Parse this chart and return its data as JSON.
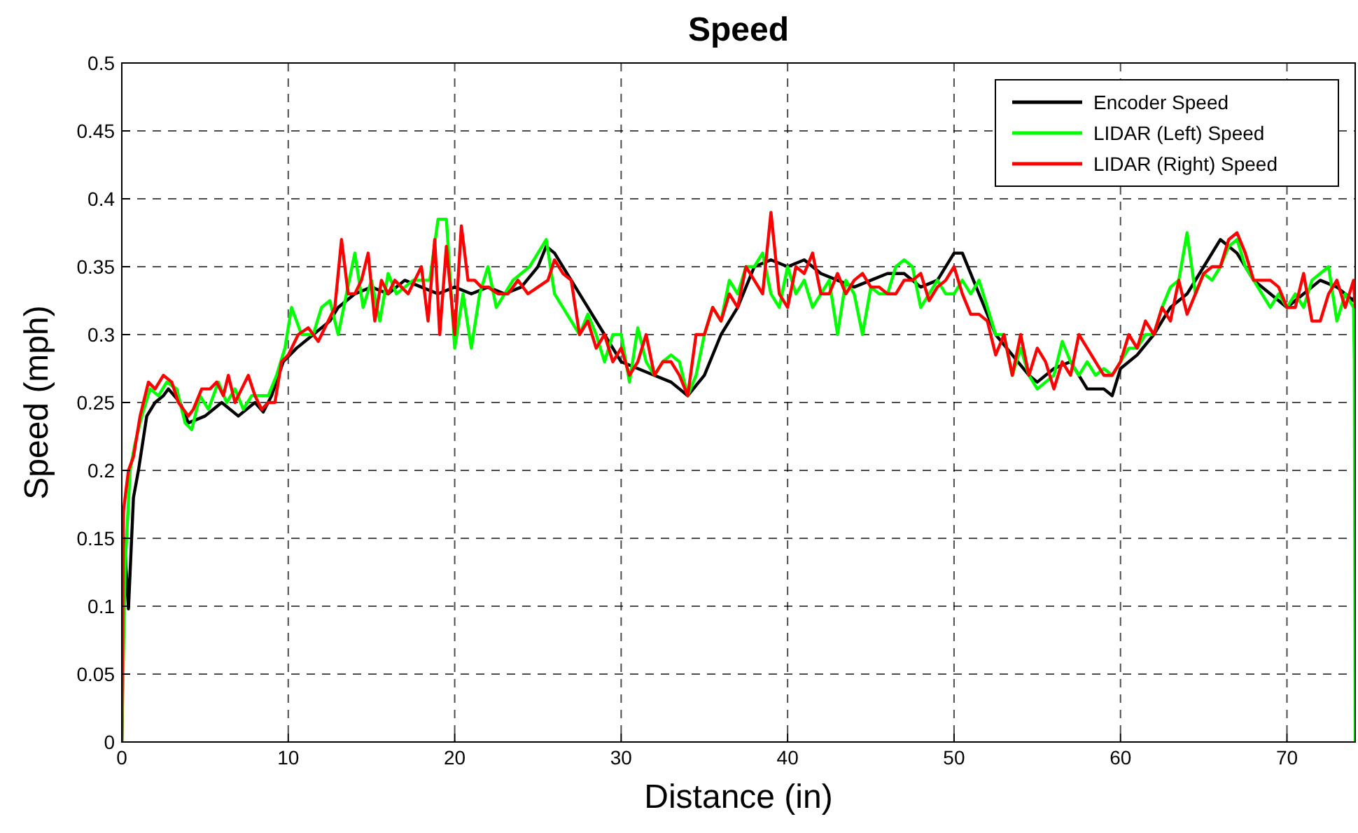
{
  "chart_data": {
    "type": "line",
    "title": "Speed",
    "xlabel": "Distance (in)",
    "ylabel": "Speed (mph)",
    "xlim": [
      0,
      74.1
    ],
    "ylim": [
      0,
      0.5
    ],
    "xticks": [
      0,
      10,
      20,
      30,
      40,
      50,
      60,
      70
    ],
    "yticks": [
      0,
      0.05,
      0.1,
      0.15,
      0.2,
      0.25,
      0.3,
      0.35,
      0.4,
      0.45,
      0.5
    ],
    "grid": true,
    "legend": "top right",
    "line_style": "solid",
    "series": [
      {
        "name": "Encoder Speed",
        "color": "#000000",
        "x": [
          0,
          0.15,
          0.4,
          0.7,
          1,
          1.5,
          2,
          2.5,
          2.8,
          3.5,
          4,
          5,
          5.5,
          6,
          7,
          8,
          8.5,
          9,
          9.7,
          10.5,
          11.5,
          12.5,
          13,
          14,
          15,
          16,
          17,
          18,
          19,
          20,
          21,
          22,
          23,
          24,
          25,
          25.5,
          26,
          27,
          28,
          29,
          30,
          31,
          32,
          33,
          34,
          35,
          36,
          37,
          38,
          39,
          40,
          41,
          42,
          43,
          44,
          45,
          46,
          47,
          48,
          49,
          50,
          50.5,
          51.5,
          52.5,
          53.5,
          54.5,
          55,
          56,
          57,
          58,
          59,
          59.5,
          60,
          61,
          62,
          63,
          64,
          65,
          66,
          67,
          68,
          69,
          70,
          71,
          72,
          73,
          74,
          74.1
        ],
        "values": [
          0,
          0.15,
          0.098,
          0.18,
          0.2,
          0.24,
          0.25,
          0.255,
          0.26,
          0.25,
          0.235,
          0.24,
          0.245,
          0.25,
          0.24,
          0.25,
          0.243,
          0.255,
          0.28,
          0.29,
          0.3,
          0.31,
          0.32,
          0.33,
          0.335,
          0.33,
          0.34,
          0.335,
          0.33,
          0.335,
          0.33,
          0.335,
          0.33,
          0.335,
          0.35,
          0.365,
          0.36,
          0.34,
          0.32,
          0.3,
          0.28,
          0.275,
          0.27,
          0.265,
          0.255,
          0.27,
          0.3,
          0.32,
          0.35,
          0.355,
          0.35,
          0.355,
          0.345,
          0.34,
          0.335,
          0.34,
          0.345,
          0.345,
          0.335,
          0.34,
          0.36,
          0.36,
          0.33,
          0.3,
          0.285,
          0.27,
          0.265,
          0.275,
          0.28,
          0.26,
          0.26,
          0.255,
          0.275,
          0.285,
          0.3,
          0.32,
          0.33,
          0.35,
          0.37,
          0.36,
          0.34,
          0.33,
          0.32,
          0.33,
          0.34,
          0.335,
          0.325,
          0.33
        ]
      },
      {
        "name": "LIDAR (Left) Speed",
        "color": "#00ff00",
        "x": [
          0,
          0.2,
          0.5,
          0.8,
          1.2,
          1.7,
          2.2,
          2.7,
          3.3,
          3.8,
          4.2,
          4.7,
          5.2,
          5.8,
          6.3,
          6.8,
          7.3,
          7.8,
          8.3,
          8.8,
          9.3,
          9.8,
          10.2,
          10.8,
          11.5,
          12,
          12.5,
          13,
          13.5,
          14,
          14.5,
          15,
          15.5,
          16,
          16.5,
          17,
          17.5,
          18,
          18.5,
          19,
          19.5,
          20,
          20.5,
          21,
          21.5,
          22,
          22.5,
          23,
          23.5,
          24,
          24.5,
          25,
          25.5,
          26,
          26.5,
          27,
          27.5,
          28,
          28.5,
          29,
          29.5,
          30,
          30.5,
          31,
          31.5,
          32,
          32.5,
          33,
          33.5,
          34,
          34.5,
          35,
          35.5,
          36,
          36.5,
          37,
          37.5,
          38,
          38.5,
          39,
          39.5,
          40,
          40.5,
          41,
          41.5,
          42,
          42.5,
          43,
          43.5,
          44,
          44.5,
          45,
          45.5,
          46,
          46.5,
          47,
          47.5,
          48,
          48.5,
          49,
          49.5,
          50,
          50.5,
          51,
          51.5,
          52,
          52.5,
          53,
          53.5,
          54,
          54.5,
          55,
          55.5,
          56,
          56.5,
          57,
          57.5,
          58,
          58.5,
          59,
          59.5,
          60,
          60.5,
          61,
          61.5,
          62,
          62.5,
          63,
          63.5,
          64,
          64.5,
          65,
          65.5,
          66,
          66.5,
          67,
          67.5,
          68,
          68.5,
          69,
          69.5,
          70,
          70.5,
          71,
          71.5,
          72,
          72.5,
          73,
          73.5,
          74,
          74.05,
          74.1
        ],
        "values": [
          0,
          0.13,
          0.2,
          0.22,
          0.24,
          0.26,
          0.255,
          0.265,
          0.26,
          0.235,
          0.23,
          0.255,
          0.245,
          0.265,
          0.25,
          0.26,
          0.245,
          0.255,
          0.255,
          0.255,
          0.27,
          0.29,
          0.32,
          0.3,
          0.3,
          0.32,
          0.325,
          0.3,
          0.33,
          0.36,
          0.32,
          0.34,
          0.31,
          0.345,
          0.33,
          0.335,
          0.34,
          0.34,
          0.34,
          0.385,
          0.385,
          0.29,
          0.33,
          0.29,
          0.33,
          0.35,
          0.32,
          0.33,
          0.34,
          0.345,
          0.35,
          0.36,
          0.37,
          0.33,
          0.32,
          0.31,
          0.3,
          0.315,
          0.3,
          0.28,
          0.3,
          0.3,
          0.265,
          0.305,
          0.28,
          0.27,
          0.28,
          0.285,
          0.28,
          0.255,
          0.27,
          0.3,
          0.32,
          0.31,
          0.34,
          0.33,
          0.35,
          0.35,
          0.36,
          0.33,
          0.32,
          0.35,
          0.33,
          0.34,
          0.32,
          0.33,
          0.34,
          0.3,
          0.34,
          0.33,
          0.3,
          0.335,
          0.33,
          0.33,
          0.35,
          0.355,
          0.35,
          0.32,
          0.33,
          0.34,
          0.33,
          0.33,
          0.34,
          0.33,
          0.34,
          0.32,
          0.3,
          0.3,
          0.27,
          0.29,
          0.27,
          0.26,
          0.265,
          0.27,
          0.295,
          0.28,
          0.27,
          0.28,
          0.27,
          0.275,
          0.27,
          0.28,
          0.29,
          0.29,
          0.3,
          0.3,
          0.32,
          0.335,
          0.34,
          0.375,
          0.33,
          0.345,
          0.34,
          0.35,
          0.365,
          0.37,
          0.35,
          0.34,
          0.33,
          0.32,
          0.33,
          0.32,
          0.33,
          0.32,
          0.34,
          0.345,
          0.35,
          0.31,
          0.33,
          0.32,
          0.28,
          0
        ]
      },
      {
        "name": "LIDAR (Right) Speed",
        "color": "#ff0000",
        "x": [
          0,
          0.1,
          0.4,
          0.7,
          1.1,
          1.6,
          2,
          2.5,
          3,
          3.4,
          3.7,
          4,
          4.3,
          4.8,
          5.3,
          5.7,
          6.1,
          6.4,
          6.8,
          7.2,
          7.6,
          8,
          8.4,
          8.8,
          9.2,
          9.6,
          10,
          10.6,
          11.2,
          11.8,
          12.4,
          12.8,
          13.2,
          13.6,
          14,
          14.4,
          14.8,
          15.2,
          15.6,
          16,
          16.4,
          16.8,
          17.2,
          17.6,
          18,
          18.4,
          18.8,
          19.1,
          19.5,
          20,
          20.4,
          20.8,
          21.2,
          21.6,
          22,
          22.6,
          23.2,
          23.8,
          24.4,
          25,
          25.6,
          26,
          26.5,
          27,
          27.5,
          28,
          28.5,
          29,
          29.5,
          30,
          30.5,
          31,
          31.5,
          32,
          32.5,
          33,
          33.5,
          34,
          34.5,
          35,
          35.5,
          36,
          36.5,
          37,
          37.5,
          38,
          38.5,
          39,
          39.5,
          40,
          40.5,
          41,
          41.5,
          42,
          42.5,
          43,
          43.5,
          44,
          44.5,
          45,
          45.5,
          46,
          46.5,
          47,
          47.5,
          48,
          48.5,
          49,
          49.5,
          50,
          50.5,
          51,
          51.5,
          52,
          52.5,
          53,
          53.5,
          54,
          54.5,
          55,
          55.5,
          56,
          56.5,
          57,
          57.5,
          58,
          58.5,
          59,
          59.5,
          60,
          60.5,
          61,
          61.5,
          62,
          62.5,
          63,
          63.5,
          64,
          64.5,
          65,
          65.5,
          66,
          66.5,
          67,
          67.5,
          68,
          68.5,
          69,
          69.5,
          70,
          70.5,
          71,
          71.5,
          72,
          72.5,
          73,
          73.5,
          74,
          74.1
        ],
        "values": [
          0,
          0.17,
          0.2,
          0.21,
          0.24,
          0.265,
          0.26,
          0.27,
          0.265,
          0.25,
          0.245,
          0.24,
          0.245,
          0.26,
          0.26,
          0.265,
          0.255,
          0.27,
          0.25,
          0.26,
          0.27,
          0.255,
          0.245,
          0.25,
          0.25,
          0.28,
          0.285,
          0.3,
          0.305,
          0.295,
          0.31,
          0.32,
          0.37,
          0.33,
          0.33,
          0.34,
          0.36,
          0.31,
          0.34,
          0.33,
          0.34,
          0.335,
          0.33,
          0.34,
          0.35,
          0.31,
          0.37,
          0.3,
          0.365,
          0.3,
          0.38,
          0.34,
          0.34,
          0.335,
          0.335,
          0.33,
          0.33,
          0.34,
          0.33,
          0.335,
          0.34,
          0.355,
          0.345,
          0.34,
          0.3,
          0.31,
          0.29,
          0.3,
          0.28,
          0.29,
          0.27,
          0.28,
          0.3,
          0.27,
          0.28,
          0.28,
          0.27,
          0.255,
          0.3,
          0.3,
          0.32,
          0.31,
          0.33,
          0.32,
          0.35,
          0.34,
          0.33,
          0.39,
          0.33,
          0.32,
          0.35,
          0.345,
          0.36,
          0.33,
          0.33,
          0.345,
          0.33,
          0.34,
          0.345,
          0.335,
          0.335,
          0.33,
          0.33,
          0.34,
          0.34,
          0.345,
          0.325,
          0.335,
          0.34,
          0.35,
          0.33,
          0.315,
          0.315,
          0.31,
          0.285,
          0.3,
          0.27,
          0.3,
          0.27,
          0.29,
          0.28,
          0.26,
          0.28,
          0.27,
          0.3,
          0.29,
          0.28,
          0.27,
          0.27,
          0.28,
          0.3,
          0.29,
          0.31,
          0.3,
          0.32,
          0.31,
          0.34,
          0.315,
          0.33,
          0.345,
          0.35,
          0.35,
          0.37,
          0.375,
          0.36,
          0.34,
          0.34,
          0.34,
          0.335,
          0.32,
          0.32,
          0.345,
          0.31,
          0.31,
          0.33,
          0.34,
          0.32,
          0.34,
          0.32
        ]
      }
    ]
  }
}
